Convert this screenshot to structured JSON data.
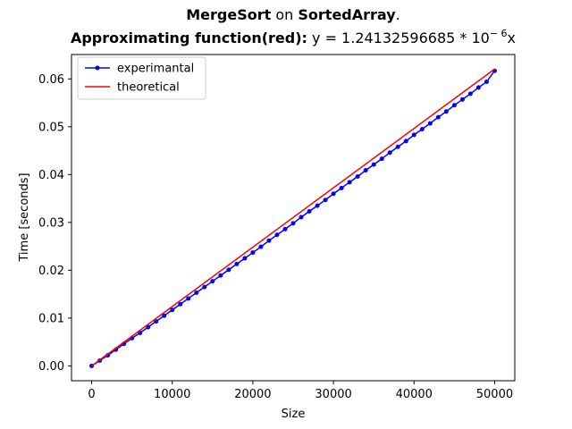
{
  "chart_data": {
    "type": "line",
    "title": {
      "line1_bold_a": "MergeSort",
      "line1_normal": " on ",
      "line1_bold_b": "SortedArray",
      "line1_end": ".",
      "line2_bold": "Approximating function(red):",
      "line2_formula": " y = 1.24132596685 * 10",
      "line2_exponent": "− 6",
      "line2_end": "x"
    },
    "xlabel": "Size",
    "ylabel": "Time [seconds]",
    "xlim": [
      -2500,
      52500
    ],
    "ylim": [
      -0.0031,
      0.0651
    ],
    "xticks": [
      0,
      10000,
      20000,
      30000,
      40000,
      50000
    ],
    "xtick_labels": [
      "0",
      "10000",
      "20000",
      "30000",
      "40000",
      "50000"
    ],
    "yticks": [
      0.0,
      0.01,
      0.02,
      0.03,
      0.04,
      0.05,
      0.06
    ],
    "ytick_labels": [
      "0.00",
      "0.01",
      "0.02",
      "0.03",
      "0.04",
      "0.05",
      "0.06"
    ],
    "grid": false,
    "legend_position": "top-left",
    "series": [
      {
        "name": "experimantal",
        "color": "#0000ff",
        "marker": "dot",
        "x": [
          0,
          1000,
          2000,
          3000,
          4000,
          5000,
          6000,
          7000,
          8000,
          9000,
          10000,
          11000,
          12000,
          13000,
          14000,
          15000,
          16000,
          17000,
          18000,
          19000,
          20000,
          21000,
          22000,
          23000,
          24000,
          25000,
          26000,
          27000,
          28000,
          29000,
          30000,
          31000,
          32000,
          33000,
          34000,
          35000,
          36000,
          37000,
          38000,
          39000,
          40000,
          41000,
          42000,
          43000,
          44000,
          45000,
          46000,
          47000,
          48000,
          49000,
          50000
        ],
        "y": [
          0.0,
          0.0011,
          0.0022,
          0.0034,
          0.0046,
          0.0058,
          0.0069,
          0.0081,
          0.0093,
          0.0105,
          0.0117,
          0.0129,
          0.0141,
          0.0153,
          0.0165,
          0.0177,
          0.0189,
          0.0201,
          0.0213,
          0.0225,
          0.0237,
          0.0249,
          0.0262,
          0.0274,
          0.0286,
          0.0298,
          0.0311,
          0.0323,
          0.0335,
          0.0347,
          0.036,
          0.0372,
          0.0384,
          0.0396,
          0.0409,
          0.0421,
          0.0433,
          0.0446,
          0.0458,
          0.047,
          0.0483,
          0.0495,
          0.0507,
          0.052,
          0.0532,
          0.0545,
          0.0557,
          0.0569,
          0.0582,
          0.0594,
          0.0617
        ]
      },
      {
        "name": "theoretical",
        "color": "#ff0000",
        "marker": "none",
        "function": "linear",
        "coefficient": 1.24132596685e-06,
        "x": [
          0,
          50000
        ]
      }
    ]
  }
}
